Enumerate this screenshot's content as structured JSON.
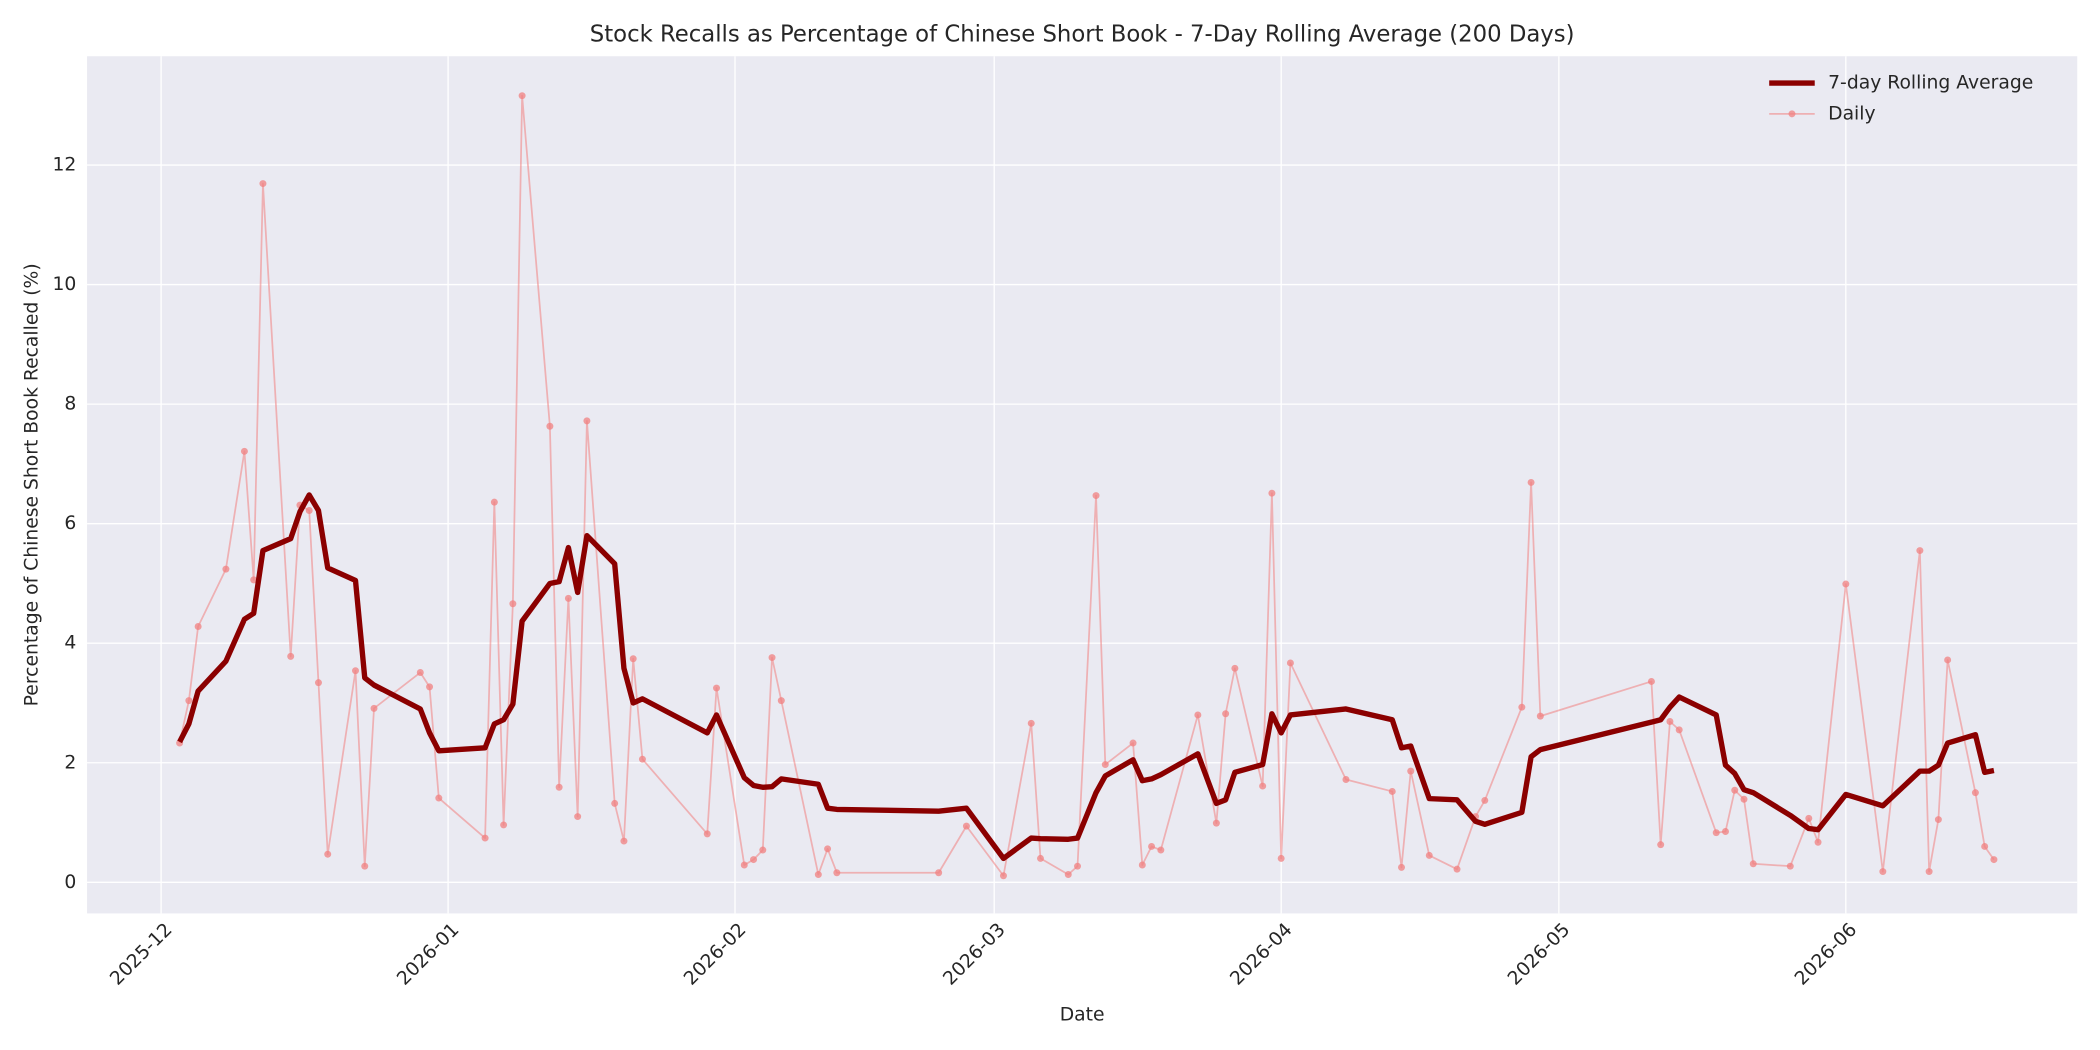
{
  "chart_data": {
    "type": "line",
    "title": "Stock Recalls as Percentage of Chinese Short Book - 7-Day Rolling Average (200 Days)",
    "xlabel": "Date",
    "ylabel": "Percentage of Chinese Short Book Recalled (%)",
    "x": [
      "2025-12-03",
      "2025-12-04",
      "2025-12-05",
      "2025-12-08",
      "2025-12-10",
      "2025-12-11",
      "2025-12-12",
      "2025-12-15",
      "2025-12-16",
      "2025-12-17",
      "2025-12-18",
      "2025-12-19",
      "2025-12-22",
      "2025-12-23",
      "2025-12-24",
      "2025-12-29",
      "2025-12-30",
      "2025-12-31",
      "2026-01-05",
      "2026-01-06",
      "2026-01-07",
      "2026-01-08",
      "2026-01-09",
      "2026-01-12",
      "2026-01-13",
      "2026-01-14",
      "2026-01-15",
      "2026-01-16",
      "2026-01-19",
      "2026-01-20",
      "2026-01-21",
      "2026-01-22",
      "2026-01-29",
      "2026-01-30",
      "2026-02-02",
      "2026-02-03",
      "2026-02-04",
      "2026-02-05",
      "2026-02-06",
      "2026-02-10",
      "2026-02-11",
      "2026-02-12",
      "2026-02-23",
      "2026-02-26",
      "2026-03-02",
      "2026-03-05",
      "2026-03-06",
      "2026-03-09",
      "2026-03-10",
      "2026-03-12",
      "2026-03-13",
      "2026-03-16",
      "2026-03-17",
      "2026-03-18",
      "2026-03-19",
      "2026-03-23",
      "2026-03-25",
      "2026-03-26",
      "2026-03-27",
      "2026-03-30",
      "2026-03-31",
      "2026-04-01",
      "2026-04-02",
      "2026-04-08",
      "2026-04-13",
      "2026-04-14",
      "2026-04-15",
      "2026-04-17",
      "2026-04-20",
      "2026-04-22",
      "2026-04-23",
      "2026-04-27",
      "2026-04-28",
      "2026-04-29",
      "2026-05-11",
      "2026-05-12",
      "2026-05-13",
      "2026-05-14",
      "2026-05-18",
      "2026-05-19",
      "2026-05-20",
      "2026-05-21",
      "2026-05-22",
      "2026-05-26",
      "2026-05-28",
      "2026-05-29",
      "2026-06-01",
      "2026-06-05",
      "2026-06-09",
      "2026-06-10",
      "2026-06-11",
      "2026-06-12",
      "2026-06-15",
      "2026-06-16",
      "2026-06-17"
    ],
    "series": [
      {
        "name": "7-day Rolling Average",
        "color": "#8b0000",
        "values": [
          2.35,
          2.65,
          3.2,
          3.7,
          4.4,
          4.5,
          5.55,
          5.75,
          6.2,
          6.48,
          6.22,
          5.26,
          5.05,
          3.42,
          3.3,
          2.9,
          2.5,
          2.2,
          2.25,
          2.65,
          2.72,
          2.98,
          4.37,
          5.0,
          5.03,
          5.6,
          4.85,
          5.8,
          5.33,
          3.58,
          3.0,
          3.07,
          2.5,
          2.8,
          1.75,
          1.62,
          1.59,
          1.6,
          1.73,
          1.64,
          1.24,
          1.22,
          1.19,
          1.24,
          0.4,
          0.74,
          0.73,
          0.72,
          0.74,
          1.5,
          1.78,
          2.05,
          1.7,
          1.73,
          1.8,
          2.15,
          1.32,
          1.38,
          1.84,
          1.97,
          2.82,
          2.5,
          2.8,
          2.9,
          2.72,
          2.25,
          2.28,
          1.4,
          1.38,
          1.02,
          0.97,
          1.17,
          2.1,
          2.22,
          2.68,
          2.72,
          2.93,
          3.1,
          2.8,
          1.96,
          1.82,
          1.55,
          1.5,
          1.12,
          0.9,
          0.88,
          1.47,
          1.28,
          1.86,
          1.86,
          1.96,
          2.33,
          2.47,
          1.84,
          1.87
        ]
      },
      {
        "name": "Daily",
        "color": "#f08080",
        "values": [
          2.33,
          3.04,
          4.28,
          5.24,
          7.21,
          5.06,
          11.69,
          3.78,
          6.31,
          6.22,
          3.34,
          0.47,
          3.54,
          0.27,
          2.91,
          3.51,
          3.27,
          1.41,
          0.74,
          6.36,
          0.96,
          4.66,
          13.16,
          7.63,
          1.59,
          4.75,
          1.1,
          7.72,
          1.32,
          0.69,
          3.74,
          2.06,
          0.81,
          3.25,
          0.29,
          0.38,
          0.54,
          3.76,
          3.04,
          0.13,
          0.56,
          0.16,
          0.16,
          0.94,
          0.11,
          2.66,
          0.4,
          0.13,
          0.27,
          6.47,
          1.97,
          2.33,
          0.29,
          0.6,
          0.54,
          2.8,
          0.99,
          2.82,
          3.58,
          1.61,
          6.51,
          0.4,
          3.67,
          1.72,
          1.52,
          0.25,
          1.86,
          0.45,
          0.22,
          1.1,
          1.37,
          2.93,
          6.69,
          2.78,
          3.36,
          0.63,
          2.69,
          2.55,
          0.83,
          0.85,
          1.54,
          1.39,
          0.31,
          0.27,
          1.07,
          0.67,
          4.99,
          0.18,
          5.55,
          0.18,
          1.05,
          3.72,
          1.5,
          0.6,
          0.38
        ]
      }
    ],
    "xlim": [
      "2025-11-23",
      "2026-06-26"
    ],
    "xticks": [
      {
        "value": "2025-12-01",
        "label": "2025-12"
      },
      {
        "value": "2026-01-01",
        "label": "2026-01"
      },
      {
        "value": "2026-02-01",
        "label": "2026-02"
      },
      {
        "value": "2026-03-01",
        "label": "2026-03"
      },
      {
        "value": "2026-04-01",
        "label": "2026-04"
      },
      {
        "value": "2026-05-01",
        "label": "2026-05"
      },
      {
        "value": "2026-06-01",
        "label": "2026-06"
      }
    ],
    "ylim": [
      -0.52,
      13.82
    ],
    "yticks": [
      0,
      2,
      4,
      6,
      8,
      10,
      12
    ],
    "grid": true,
    "legend": "upper right"
  }
}
